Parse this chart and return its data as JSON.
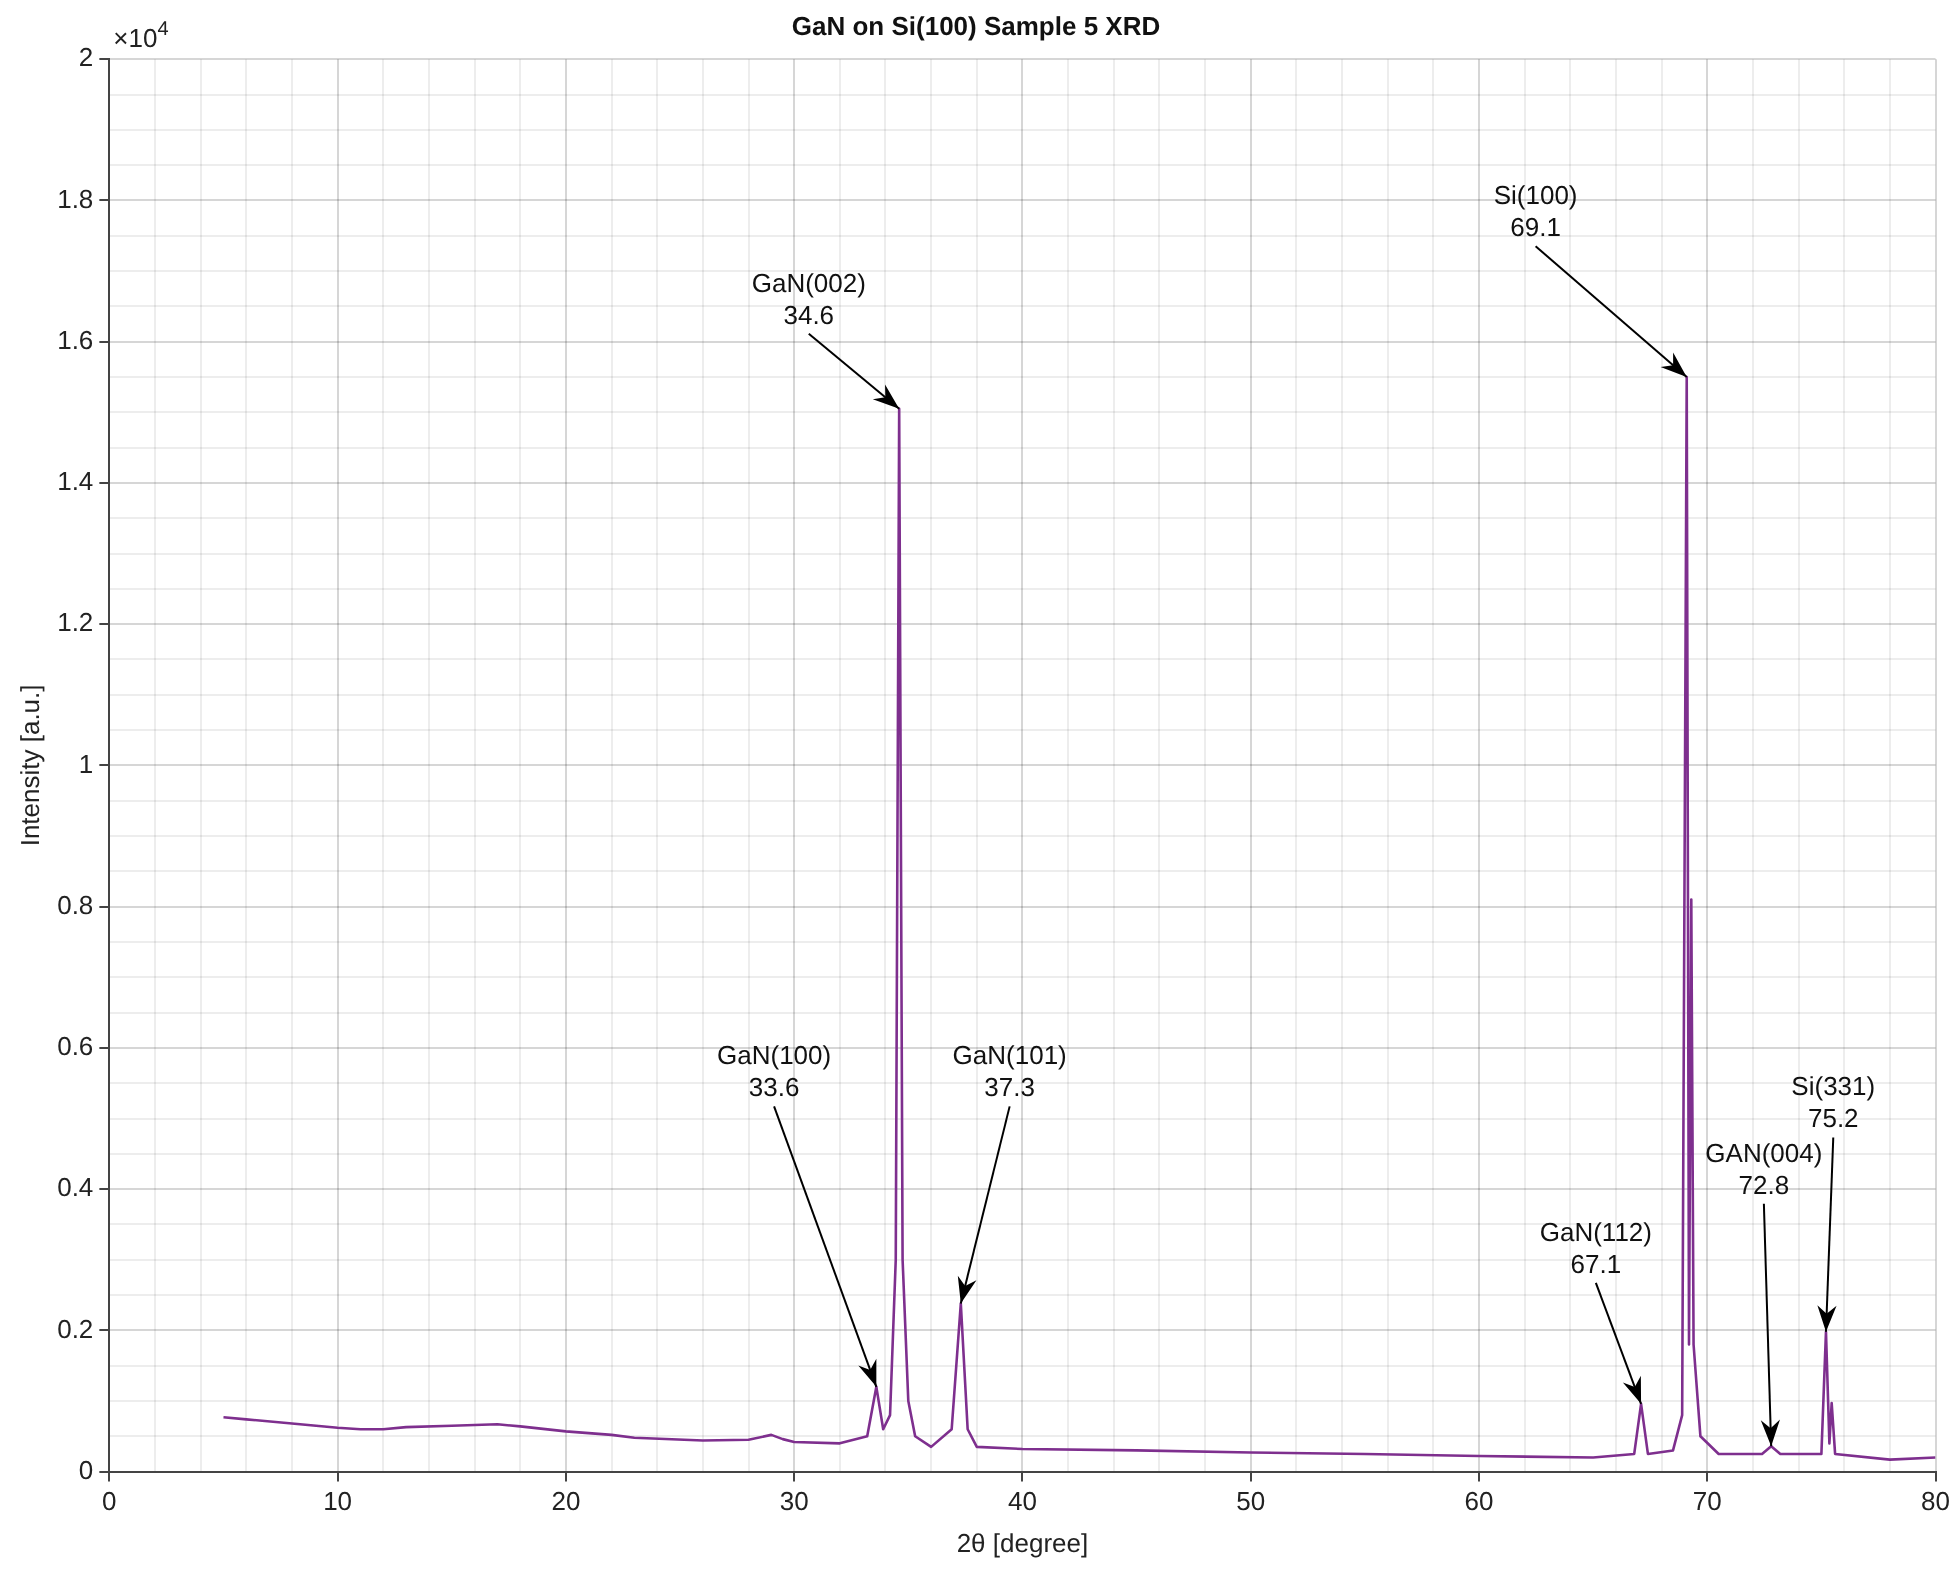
{
  "chart_data": {
    "type": "line",
    "title": "GaN on Si(100) Sample 5 XRD",
    "xlabel": "2θ [degree]",
    "ylabel": "Intensity [a.u.]",
    "series": [
      {
        "color": "#7e2f8e",
        "x": [
          5,
          6,
          8,
          10,
          11,
          12,
          13,
          15,
          17,
          18,
          20,
          22,
          23,
          26,
          28,
          29,
          29.5,
          30,
          32,
          33.2,
          33.6,
          33.9,
          34.2,
          34.45,
          34.6,
          34.75,
          35,
          35.3,
          36,
          36.9,
          37.3,
          37.6,
          38,
          40,
          45,
          50,
          55,
          60,
          65,
          66.8,
          67.1,
          67.4,
          68.5,
          68.9,
          69.1,
          69.2,
          69.3,
          69.4,
          69.7,
          70.5,
          72.4,
          72.8,
          73.2,
          75,
          75.2,
          75.35,
          75.45,
          75.6,
          78,
          80
        ],
        "values": [
          0.077,
          0.074,
          0.068,
          0.062,
          0.06,
          0.06,
          0.063,
          0.065,
          0.067,
          0.064,
          0.057,
          0.052,
          0.048,
          0.044,
          0.045,
          0.052,
          0.046,
          0.042,
          0.04,
          0.05,
          0.12,
          0.06,
          0.08,
          0.3,
          1.505,
          0.3,
          0.1,
          0.05,
          0.035,
          0.06,
          0.238,
          0.06,
          0.035,
          0.032,
          0.03,
          0.027,
          0.025,
          0.022,
          0.02,
          0.025,
          0.096,
          0.025,
          0.03,
          0.08,
          1.55,
          0.18,
          0.81,
          0.18,
          0.05,
          0.025,
          0.025,
          0.036,
          0.025,
          0.025,
          0.198,
          0.04,
          0.097,
          0.025,
          0.017,
          0.02
        ]
      }
    ],
    "xlim": [
      0,
      80
    ],
    "xticks": [
      0,
      {
        "value": 2,
        "label": null
      },
      {
        "value": 4,
        "label": null
      },
      {
        "value": 6,
        "label": null
      },
      {
        "value": 8,
        "label": null
      },
      10,
      {
        "value": 12,
        "label": null
      },
      {
        "value": 14,
        "label": null
      },
      {
        "value": 16,
        "label": null
      },
      {
        "value": 18,
        "label": null
      },
      20,
      {
        "value": 22,
        "label": null
      },
      {
        "value": 24,
        "label": null
      },
      {
        "value": 26,
        "label": null
      },
      {
        "value": 28,
        "label": null
      },
      30,
      {
        "value": 32,
        "label": null
      },
      {
        "value": 34,
        "label": null
      },
      {
        "value": 36,
        "label": null
      },
      {
        "value": 38,
        "label": null
      },
      40,
      {
        "value": 42,
        "label": null
      },
      {
        "value": 44,
        "label": null
      },
      {
        "value": 46,
        "label": null
      },
      {
        "value": 48,
        "label": null
      },
      50,
      {
        "value": 52,
        "label": null
      },
      {
        "value": 54,
        "label": null
      },
      {
        "value": 56,
        "label": null
      },
      {
        "value": 58,
        "label": null
      },
      60,
      {
        "value": 62,
        "label": null
      },
      {
        "value": 64,
        "label": null
      },
      {
        "value": 66,
        "label": null
      },
      {
        "value": 68,
        "label": null
      },
      70,
      {
        "value": 72,
        "label": null
      },
      {
        "value": 74,
        "label": null
      },
      {
        "value": 76,
        "label": null
      },
      {
        "value": 78,
        "label": null
      },
      80
    ],
    "ylim": [
      0,
      2
    ],
    "yticks": [
      0,
      {
        "value": 0.05,
        "label": null
      },
      {
        "value": 0.1,
        "label": null
      },
      {
        "value": 0.15,
        "label": null
      },
      0.2,
      {
        "value": 0.25,
        "label": null
      },
      {
        "value": 0.3,
        "label": null
      },
      {
        "value": 0.35,
        "label": null
      },
      0.4,
      {
        "value": 0.45,
        "label": null
      },
      {
        "value": 0.5,
        "label": null
      },
      {
        "value": 0.55,
        "label": null
      },
      0.6,
      {
        "value": 0.65,
        "label": null
      },
      {
        "value": 0.7,
        "label": null
      },
      {
        "value": 0.75,
        "label": null
      },
      0.8,
      {
        "value": 0.85,
        "label": null
      },
      {
        "value": 0.9,
        "label": null
      },
      {
        "value": 0.95,
        "label": null
      },
      1,
      {
        "value": 1.05,
        "label": null
      },
      {
        "value": 1.1,
        "label": null
      },
      {
        "value": 1.15,
        "label": null
      },
      1.2,
      {
        "value": 1.25,
        "label": null
      },
      {
        "value": 1.3,
        "label": null
      },
      {
        "value": 1.35,
        "label": null
      },
      1.4,
      {
        "value": 1.45,
        "label": null
      },
      {
        "value": 1.5,
        "label": null
      },
      {
        "value": 1.55,
        "label": null
      },
      1.6,
      {
        "value": 1.65,
        "label": null
      },
      {
        "value": 1.7,
        "label": null
      },
      {
        "value": 1.75,
        "label": null
      },
      1.8,
      {
        "value": 1.85,
        "label": null
      },
      {
        "value": 1.9,
        "label": null
      },
      {
        "value": 1.95,
        "label": null
      },
      2
    ],
    "grid": true,
    "marker": "none",
    "line_style": "solid",
    "legend": false,
    "annotations": [
      "×10$^{4}$",
      {
        "text": "GaN(100)\n33.6",
        "x": 33.6,
        "y": 0.12
      },
      {
        "text": "GaN(002)\n34.6",
        "x": 34.6,
        "y": 1.505
      },
      {
        "text": "GaN(101)\n37.3",
        "x": 37.3,
        "y": 0.238
      },
      {
        "text": "GaN(112)\n67.1",
        "x": 67.1,
        "y": 0.096
      },
      {
        "text": "Si(100)\n69.1",
        "x": 69.1,
        "y": 1.55
      },
      {
        "text": "GAN(004)\n72.8",
        "x": 72.8,
        "y": 0.036
      },
      {
        "text": "Si(331)\n75.2",
        "x": 75.2,
        "y": 0.198
      }
    ]
  }
}
